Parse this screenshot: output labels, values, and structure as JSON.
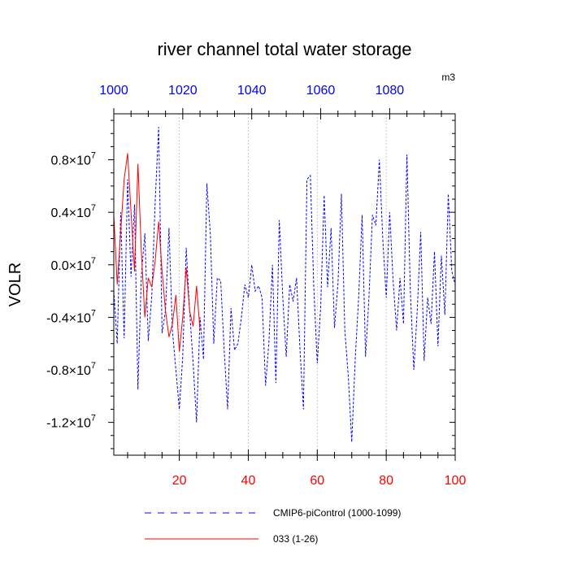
{
  "chart_data": {
    "type": "line",
    "title": "river channel total water storage",
    "units": "m3",
    "ylabel": "VOLR",
    "ylim": [
      -14500000,
      11500000
    ],
    "y_ticks": [
      {
        "value": 8000000,
        "mantissa": "0.8",
        "exp": "7"
      },
      {
        "value": 4000000,
        "mantissa": "0.4",
        "exp": "7"
      },
      {
        "value": 0,
        "mantissa": "0.0",
        "exp": "7"
      },
      {
        "value": -4000000,
        "mantissa": "-0.4",
        "exp": "7"
      },
      {
        "value": -8000000,
        "mantissa": "-0.8",
        "exp": "7"
      },
      {
        "value": -12000000,
        "mantissa": "-1.2",
        "exp": "7"
      }
    ],
    "x_bottom": {
      "range": [
        1,
        100
      ],
      "ticks": [
        "20",
        "40",
        "60",
        "80",
        "100"
      ],
      "color": "#ff0000"
    },
    "x_top": {
      "range": [
        1000,
        1099
      ],
      "ticks": [
        "1000",
        "1020",
        "1040",
        "1060",
        "1080"
      ],
      "color": "#0000ff"
    },
    "grid": "vertical dashed at bottom-axis 20, 40, 60, 80",
    "legend_position": "bottom",
    "series": [
      {
        "name": "CMIP6-piControl (1000-1099)",
        "color": "#0000ff",
        "dash": "dashed",
        "x": [
          1,
          2,
          3,
          4,
          5,
          6,
          7,
          8,
          9,
          10,
          11,
          12,
          13,
          14,
          15,
          16,
          17,
          18,
          19,
          20,
          21,
          22,
          23,
          24,
          25,
          26,
          27,
          28,
          29,
          30,
          31,
          32,
          33,
          34,
          35,
          36,
          37,
          38,
          39,
          40,
          41,
          42,
          43,
          44,
          45,
          46,
          47,
          48,
          49,
          50,
          51,
          52,
          53,
          54,
          55,
          56,
          57,
          58,
          59,
          60,
          61,
          62,
          63,
          64,
          65,
          66,
          67,
          68,
          69,
          70,
          71,
          72,
          73,
          74,
          75,
          76,
          77,
          78,
          79,
          80,
          81,
          82,
          83,
          84,
          85,
          86,
          87,
          88,
          89,
          90,
          91,
          92,
          93,
          94,
          95,
          96,
          97,
          98,
          99,
          100
        ],
        "y": [
          -2000000,
          -6000000,
          4000000,
          -5600000,
          6500000,
          -900000,
          4600000,
          -9500000,
          -800000,
          2400000,
          -5800000,
          -2400000,
          4800000,
          10500000,
          -5200000,
          -3500000,
          2800000,
          -5000000,
          -8000000,
          -11000000,
          -7000000,
          1300000,
          -3500000,
          -7500000,
          -12000000,
          -4000000,
          -7200000,
          6200000,
          2300000,
          -6000000,
          -1000000,
          -1200000,
          -6500000,
          -11000000,
          -3300000,
          -6500000,
          -6000000,
          -4000000,
          -1500000,
          -2500000,
          0,
          -2000000,
          -1600000,
          -2500000,
          -9200000,
          -5800000,
          0,
          -9000000,
          3400000,
          -2500000,
          -7000000,
          -1500000,
          -2800000,
          -1000000,
          -6500000,
          -11000000,
          6500000,
          6800000,
          -1800000,
          -7500000,
          -3200000,
          5300000,
          -1700000,
          2800000,
          -4800000,
          -1400000,
          5400000,
          -5000000,
          -8500000,
          -13500000,
          -7200000,
          -2500000,
          3800000,
          -7000000,
          -2500000,
          3800000,
          3000000,
          8000000,
          2000000,
          -2500000,
          4000000,
          -1200000,
          -5000000,
          -1000000,
          -4500000,
          8400000,
          -2000000,
          -8000000,
          -3500000,
          2500000,
          -7300000,
          -2500000,
          -4500000,
          1000000,
          -6200000,
          700000,
          -3800000,
          5400000,
          -500000,
          -1500000
        ]
      },
      {
        "name": "033 (1-26)",
        "color": "#ff0000",
        "dash": "solid",
        "x": [
          1,
          2,
          3,
          4,
          5,
          6,
          7,
          8,
          9,
          10,
          11,
          12,
          13,
          14,
          15,
          16,
          17,
          18,
          19,
          20,
          21,
          22,
          23,
          24,
          25,
          26
        ],
        "y": [
          3800000,
          -1500000,
          2500000,
          6500000,
          8500000,
          4000000,
          -500000,
          7700000,
          1000000,
          -4000000,
          -1000000,
          -1700000,
          300000,
          3300000,
          -500000,
          -3500000,
          -5500000,
          -4500000,
          -2300000,
          -6600000,
          -4000000,
          -200000,
          -3500000,
          -4700000,
          -1600000,
          -5000000
        ]
      }
    ]
  }
}
